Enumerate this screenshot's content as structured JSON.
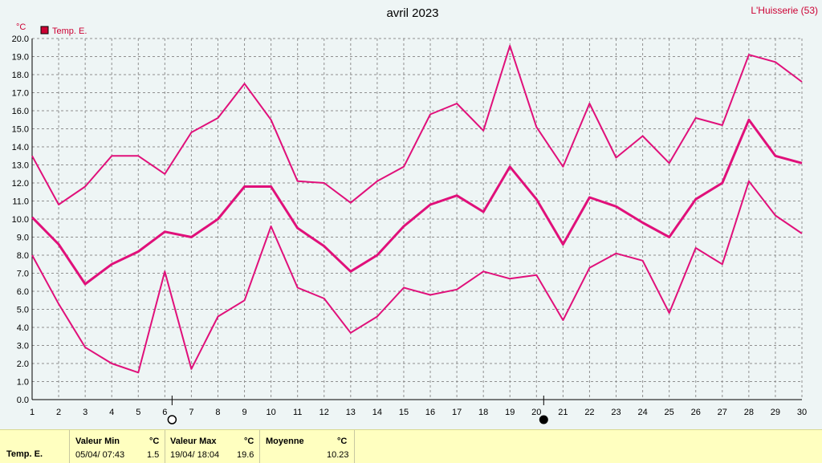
{
  "chart_data": {
    "type": "line",
    "title": "avril 2023",
    "station": "L'Huisserie (53)",
    "unit": "°C",
    "legend": "Temp. E.",
    "x": [
      1,
      2,
      3,
      4,
      5,
      6,
      7,
      8,
      9,
      10,
      11,
      12,
      13,
      14,
      15,
      16,
      17,
      18,
      19,
      20,
      21,
      22,
      23,
      24,
      25,
      26,
      27,
      28,
      29,
      30
    ],
    "xlim": [
      1,
      30
    ],
    "ylim": [
      0,
      20
    ],
    "yticks": [
      "0.0",
      "1.0",
      "2.0",
      "3.0",
      "4.0",
      "5.0",
      "6.0",
      "7.0",
      "8.0",
      "9.0",
      "10.0",
      "11.0",
      "12.0",
      "13.0",
      "14.0",
      "15.0",
      "16.0",
      "17.0",
      "18.0",
      "19.0",
      "20.0"
    ],
    "grid": true,
    "legend_position": "top-left",
    "color": "#e0107a",
    "series": [
      {
        "values": [
          13.5,
          10.8,
          11.8,
          13.5,
          13.5,
          12.5,
          14.8,
          15.6,
          17.5,
          15.5,
          12.1,
          12.0,
          10.9,
          12.1,
          12.9,
          15.8,
          16.4,
          14.9,
          19.6,
          15.1,
          12.9,
          16.4,
          13.4,
          14.6,
          13.1,
          15.6,
          15.2,
          19.1,
          18.7,
          17.6
        ]
      },
      {
        "values": [
          10.1,
          8.6,
          6.4,
          7.5,
          8.2,
          9.3,
          9.0,
          10.0,
          11.8,
          11.8,
          9.5,
          8.5,
          7.1,
          8.0,
          9.6,
          10.8,
          11.3,
          10.4,
          12.9,
          11.1,
          8.6,
          11.2,
          10.7,
          9.8,
          9.0,
          11.1,
          12.0,
          15.5,
          13.5,
          13.1
        ]
      },
      {
        "values": [
          8.0,
          5.3,
          2.9,
          2.0,
          1.5,
          7.1,
          1.7,
          4.6,
          5.5,
          9.6,
          6.2,
          5.6,
          3.7,
          4.6,
          6.2,
          5.8,
          6.1,
          7.1,
          6.7,
          6.9,
          4.4,
          7.3,
          8.1,
          7.7,
          4.8,
          8.4,
          7.5,
          12.1,
          10.2,
          9.2
        ]
      }
    ],
    "markers": [
      {
        "day": 6,
        "icon": "full-moon-icon"
      },
      {
        "day": 20,
        "icon": "new-moon-icon"
      }
    ]
  },
  "stats": {
    "series_label": "Temp. E.",
    "min": {
      "header": "Valeur Min",
      "unit": "°C",
      "date": "05/04/  07:43",
      "value": "1.5"
    },
    "max": {
      "header": "Valeur Max",
      "unit": "°C",
      "date": "19/04/  18:04",
      "value": "19.6"
    },
    "mean": {
      "header": "Moyenne",
      "unit": "°C",
      "value": "10.23"
    }
  }
}
